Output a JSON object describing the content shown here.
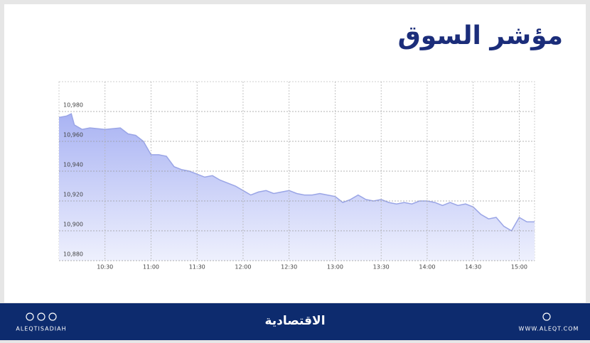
{
  "header": {
    "title": "مؤشر السوق"
  },
  "chart_data": {
    "type": "area",
    "x": [
      "10:00",
      "10:05",
      "10:08",
      "10:10",
      "10:15",
      "10:20",
      "10:30",
      "10:40",
      "10:45",
      "10:50",
      "10:55",
      "11:00",
      "11:05",
      "11:10",
      "11:15",
      "11:20",
      "11:25",
      "11:30",
      "11:35",
      "11:40",
      "11:45",
      "11:50",
      "11:55",
      "12:00",
      "12:05",
      "12:10",
      "12:15",
      "12:20",
      "12:25",
      "12:30",
      "12:35",
      "12:40",
      "12:45",
      "12:50",
      "12:55",
      "13:00",
      "13:05",
      "13:10",
      "13:15",
      "13:20",
      "13:25",
      "13:30",
      "13:35",
      "13:40",
      "13:45",
      "13:50",
      "13:55",
      "14:00",
      "14:05",
      "14:10",
      "14:15",
      "14:20",
      "14:25",
      "14:30",
      "14:35",
      "14:40",
      "14:45",
      "14:50",
      "14:55",
      "15:00",
      "15:05",
      "15:10"
    ],
    "series": [
      {
        "color": "#9aa5e6",
        "values": [
          10976,
          10977,
          10978.5,
          10971,
          10968,
          10969,
          10968,
          10969,
          10965,
          10964,
          10960,
          10951,
          10951,
          10950,
          10943,
          10941,
          10940,
          10938,
          10936,
          10937,
          10934,
          10932,
          10930,
          10927,
          10924,
          10926,
          10927,
          10925,
          10926,
          10927,
          10925,
          10924,
          10924,
          10925,
          10924,
          10923,
          10919,
          10921,
          10924,
          10921,
          10920,
          10921,
          10919,
          10918,
          10919,
          10918,
          10920,
          10920,
          10919,
          10917,
          10919,
          10917,
          10918,
          10916,
          10911,
          10908,
          10909,
          10903,
          10900,
          10909,
          10906,
          10906
        ]
      }
    ],
    "xlim": [
      "10:00",
      "15:10"
    ],
    "xticks": [
      "10:30",
      "11:00",
      "11:30",
      "12:00",
      "12:30",
      "13:00",
      "13:30",
      "14:00",
      "14:30",
      "15:00"
    ],
    "ylim": [
      10880,
      11000
    ],
    "yticks": [
      {
        "value": 10880,
        "label": "10,880"
      },
      {
        "value": 10900,
        "label": "10,900"
      },
      {
        "value": 10920,
        "label": "10,920"
      },
      {
        "value": 10940,
        "label": "10,940"
      },
      {
        "value": 10960,
        "label": "10,960"
      },
      {
        "value": 10980,
        "label": "10,980"
      }
    ],
    "grid": true
  },
  "footer": {
    "left": "ALEQTISADIAH",
    "center": "الاقتصادية",
    "right": "WWW.ALEQT.COM"
  }
}
